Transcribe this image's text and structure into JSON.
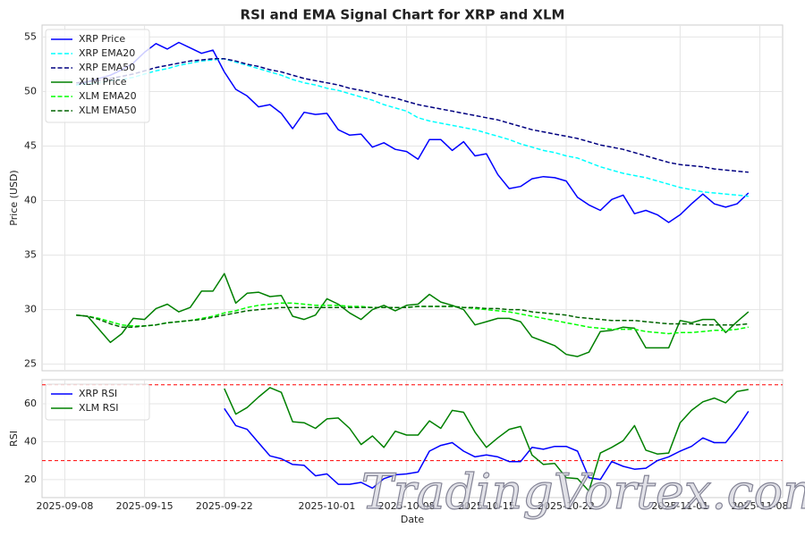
{
  "chart_data": [
    {
      "type": "line",
      "title": "RSI and EMA Signal Chart for XRP and XLM",
      "ylabel": "Price (USD)",
      "x": [
        "2025-09-09",
        "2025-09-10",
        "2025-09-11",
        "2025-09-12",
        "2025-09-13",
        "2025-09-14",
        "2025-09-15",
        "2025-09-16",
        "2025-09-17",
        "2025-09-18",
        "2025-09-19",
        "2025-09-20",
        "2025-09-21",
        "2025-09-22",
        "2025-09-23",
        "2025-09-24",
        "2025-09-25",
        "2025-09-26",
        "2025-09-27",
        "2025-09-28",
        "2025-09-29",
        "2025-09-30",
        "2025-10-01",
        "2025-10-02",
        "2025-10-03",
        "2025-10-04",
        "2025-10-05",
        "2025-10-06",
        "2025-10-07",
        "2025-10-08",
        "2025-10-09",
        "2025-10-10",
        "2025-10-11",
        "2025-10-12",
        "2025-10-13",
        "2025-10-14",
        "2025-10-15",
        "2025-10-16",
        "2025-10-17",
        "2025-10-18",
        "2025-10-19",
        "2025-10-20",
        "2025-10-21",
        "2025-10-22",
        "2025-10-23",
        "2025-10-24",
        "2025-10-25",
        "2025-10-26",
        "2025-10-27",
        "2025-10-28",
        "2025-10-29",
        "2025-10-30",
        "2025-10-31",
        "2025-11-01",
        "2025-11-02",
        "2025-11-03",
        "2025-11-04",
        "2025-11-05",
        "2025-11-06",
        "2025-11-07"
      ],
      "xlim": [
        "2025-09-06",
        "2025-11-10"
      ],
      "ylim": [
        24.4,
        56.1
      ],
      "yticks": [
        25,
        30,
        35,
        40,
        45,
        50,
        55
      ],
      "grid": true,
      "legend": "upper-left",
      "series": [
        {
          "name": "XRP Price",
          "color": "#0000ff",
          "linestyle": "solid",
          "values": [
            50.6,
            50.9,
            51.2,
            51.5,
            52.0,
            52.6,
            53.6,
            54.4,
            53.9,
            54.5,
            54.0,
            53.5,
            53.8,
            51.8,
            50.2,
            49.6,
            48.6,
            48.8,
            48.0,
            46.6,
            48.1,
            47.9,
            48.0,
            46.5,
            46.0,
            46.1,
            44.9,
            45.3,
            44.7,
            44.5,
            43.8,
            45.6,
            45.6,
            44.6,
            45.4,
            44.1,
            44.3,
            42.4,
            41.1,
            41.3,
            42.0,
            42.2,
            42.1,
            41.8,
            40.3,
            39.6,
            39.1,
            40.1,
            40.5,
            38.8,
            39.1,
            38.7,
            38.0,
            38.7,
            39.7,
            40.6,
            39.7,
            39.4,
            39.7,
            40.7
          ]
        },
        {
          "name": "XRP EMA20",
          "color": "#00ffff",
          "linestyle": "dashed",
          "values": [
            50.6,
            50.7,
            50.8,
            51.0,
            51.1,
            51.3,
            51.6,
            51.9,
            52.1,
            52.4,
            52.6,
            52.8,
            52.9,
            53.0,
            52.7,
            52.4,
            52.1,
            51.8,
            51.5,
            51.1,
            50.8,
            50.6,
            50.3,
            50.1,
            49.8,
            49.5,
            49.2,
            48.8,
            48.5,
            48.2,
            47.6,
            47.3,
            47.1,
            46.9,
            46.7,
            46.5,
            46.2,
            45.9,
            45.6,
            45.2,
            44.9,
            44.6,
            44.4,
            44.1,
            43.9,
            43.5,
            43.1,
            42.8,
            42.5,
            42.3,
            42.1,
            41.8,
            41.5,
            41.2,
            41.0,
            40.8,
            40.7,
            40.6,
            40.5,
            40.4
          ]
        },
        {
          "name": "XRP EMA50",
          "color": "#000080",
          "linestyle": "dashed",
          "values": [
            50.8,
            50.9,
            51.0,
            51.2,
            51.4,
            51.6,
            51.9,
            52.2,
            52.4,
            52.6,
            52.8,
            52.9,
            53.0,
            53.0,
            52.8,
            52.5,
            52.3,
            52.0,
            51.8,
            51.5,
            51.2,
            51.0,
            50.8,
            50.6,
            50.3,
            50.1,
            49.9,
            49.6,
            49.4,
            49.1,
            48.8,
            48.6,
            48.4,
            48.2,
            48.0,
            47.8,
            47.6,
            47.4,
            47.1,
            46.8,
            46.5,
            46.3,
            46.1,
            45.9,
            45.7,
            45.4,
            45.1,
            44.9,
            44.7,
            44.4,
            44.1,
            43.8,
            43.5,
            43.3,
            43.2,
            43.1,
            42.9,
            42.8,
            42.7,
            42.6
          ]
        },
        {
          "name": "XLM Price",
          "color": "#008000",
          "linestyle": "solid",
          "values": [
            29.5,
            29.4,
            28.2,
            27.0,
            27.8,
            29.2,
            29.1,
            30.1,
            30.5,
            29.8,
            30.2,
            31.7,
            31.7,
            33.3,
            30.6,
            31.5,
            31.6,
            31.2,
            31.3,
            29.4,
            29.1,
            29.5,
            31.0,
            30.5,
            29.7,
            29.1,
            30.0,
            30.4,
            29.9,
            30.4,
            30.5,
            31.4,
            30.7,
            30.4,
            30.0,
            28.6,
            28.9,
            29.2,
            29.2,
            28.9,
            27.5,
            27.1,
            26.7,
            25.9,
            25.7,
            26.1,
            28.0,
            28.1,
            28.4,
            28.3,
            26.5,
            26.5,
            26.5,
            29.0,
            28.8,
            29.1,
            29.1,
            27.9,
            28.9,
            29.8
          ]
        },
        {
          "name": "XLM EMA20",
          "color": "#00ff00",
          "linestyle": "dashed",
          "values": [
            29.5,
            29.4,
            29.2,
            28.9,
            28.6,
            28.5,
            28.5,
            28.6,
            28.8,
            28.9,
            29.0,
            29.2,
            29.4,
            29.7,
            29.9,
            30.2,
            30.4,
            30.5,
            30.6,
            30.6,
            30.5,
            30.4,
            30.4,
            30.4,
            30.3,
            30.3,
            30.2,
            30.2,
            30.2,
            30.2,
            30.3,
            30.3,
            30.3,
            30.3,
            30.2,
            30.1,
            30.0,
            29.9,
            29.8,
            29.6,
            29.4,
            29.2,
            29.0,
            28.8,
            28.6,
            28.4,
            28.3,
            28.2,
            28.2,
            28.2,
            28.0,
            27.9,
            27.8,
            27.9,
            27.9,
            28.0,
            28.1,
            28.1,
            28.2,
            28.4
          ]
        },
        {
          "name": "XLM EMA50",
          "color": "#006400",
          "linestyle": "dashed",
          "values": [
            29.5,
            29.4,
            29.1,
            28.7,
            28.4,
            28.4,
            28.5,
            28.6,
            28.8,
            28.9,
            29.0,
            29.1,
            29.3,
            29.5,
            29.7,
            29.9,
            30.0,
            30.1,
            30.2,
            30.2,
            30.2,
            30.2,
            30.2,
            30.2,
            30.2,
            30.2,
            30.2,
            30.2,
            30.2,
            30.2,
            30.3,
            30.3,
            30.3,
            30.3,
            30.2,
            30.2,
            30.1,
            30.1,
            30.0,
            30.0,
            29.8,
            29.7,
            29.6,
            29.5,
            29.3,
            29.2,
            29.1,
            29.0,
            29.0,
            29.0,
            28.9,
            28.8,
            28.7,
            28.7,
            28.7,
            28.6,
            28.6,
            28.6,
            28.6,
            28.7
          ]
        }
      ]
    },
    {
      "type": "line",
      "xlabel": "Date",
      "ylabel": "RSI",
      "x": [
        "2025-09-09",
        "2025-09-10",
        "2025-09-11",
        "2025-09-12",
        "2025-09-13",
        "2025-09-14",
        "2025-09-15",
        "2025-09-16",
        "2025-09-17",
        "2025-09-18",
        "2025-09-19",
        "2025-09-20",
        "2025-09-21",
        "2025-09-22",
        "2025-09-23",
        "2025-09-24",
        "2025-09-25",
        "2025-09-26",
        "2025-09-27",
        "2025-09-28",
        "2025-09-29",
        "2025-09-30",
        "2025-10-01",
        "2025-10-02",
        "2025-10-03",
        "2025-10-04",
        "2025-10-05",
        "2025-10-06",
        "2025-10-07",
        "2025-10-08",
        "2025-10-09",
        "2025-10-10",
        "2025-10-11",
        "2025-10-12",
        "2025-10-13",
        "2025-10-14",
        "2025-10-15",
        "2025-10-16",
        "2025-10-17",
        "2025-10-18",
        "2025-10-19",
        "2025-10-20",
        "2025-10-21",
        "2025-10-22",
        "2025-10-23",
        "2025-10-24",
        "2025-10-25",
        "2025-10-26",
        "2025-10-27",
        "2025-10-28",
        "2025-10-29",
        "2025-10-30",
        "2025-10-31",
        "2025-11-01",
        "2025-11-02",
        "2025-11-03",
        "2025-11-04",
        "2025-11-05",
        "2025-11-06",
        "2025-11-07"
      ],
      "xlim": [
        "2025-09-06",
        "2025-11-10"
      ],
      "xticks": [
        "2025-09-08",
        "2025-09-15",
        "2025-09-22",
        "2025-10-01",
        "2025-10-08",
        "2025-10-15",
        "2025-10-22",
        "2025-11-01",
        "2025-11-08"
      ],
      "ylim": [
        10.5,
        72.7
      ],
      "yticks": [
        20,
        40,
        60
      ],
      "grid": true,
      "legend": "upper-left",
      "hlines": [
        {
          "value": 70,
          "color": "#ff0000"
        },
        {
          "value": 30,
          "color": "#ff0000"
        }
      ],
      "series": [
        {
          "name": "XRP RSI",
          "color": "#0000ff",
          "linestyle": "solid",
          "values": [
            null,
            null,
            null,
            null,
            null,
            null,
            null,
            null,
            null,
            null,
            null,
            null,
            null,
            57.5,
            48.5,
            46.5,
            39.5,
            32.5,
            31,
            28,
            27.5,
            22,
            23,
            17.5,
            17.5,
            18.5,
            15.5,
            20.5,
            22.5,
            23,
            24,
            35,
            38,
            39.5,
            35,
            32,
            33,
            32,
            29.5,
            29.5,
            37,
            36,
            37.5,
            37.5,
            35,
            21,
            20,
            29.5,
            27,
            25.5,
            26,
            30,
            32,
            35,
            37.5,
            42,
            39.5,
            39.5,
            47,
            56
          ]
        },
        {
          "name": "XLM RSI",
          "color": "#008000",
          "linestyle": "solid",
          "values": [
            null,
            null,
            null,
            null,
            null,
            null,
            null,
            null,
            null,
            null,
            null,
            null,
            null,
            68,
            54.5,
            58,
            63.5,
            68.5,
            66,
            50.5,
            50,
            47,
            52,
            52.5,
            47,
            38.5,
            43,
            37,
            45.5,
            43.5,
            43.5,
            51,
            47,
            56.5,
            55.5,
            45,
            37,
            42,
            46.5,
            48,
            33,
            28,
            28.5,
            21,
            20.5,
            14,
            34,
            37,
            40.5,
            48.5,
            35.5,
            33.5,
            34,
            50,
            56.5,
            61,
            63,
            60.5,
            66.5,
            67.5
          ]
        }
      ]
    }
  ],
  "watermark": "TradingVortex.com"
}
